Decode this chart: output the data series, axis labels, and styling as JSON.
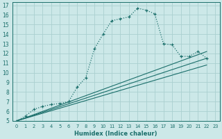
{
  "xlabel": "Humidex (Indice chaleur)",
  "bg_color": "#cce8e8",
  "grid_color": "#aad0d0",
  "line_color": "#1a6e6a",
  "xlim": [
    -0.5,
    23.5
  ],
  "ylim": [
    5,
    17.3
  ],
  "xticks": [
    0,
    1,
    2,
    3,
    4,
    5,
    6,
    7,
    8,
    9,
    10,
    11,
    12,
    13,
    14,
    15,
    16,
    17,
    18,
    19,
    20,
    21,
    22,
    23
  ],
  "yticks": [
    5,
    6,
    7,
    8,
    9,
    10,
    11,
    12,
    13,
    14,
    15,
    16,
    17
  ],
  "series": [
    {
      "x": [
        0,
        1,
        2,
        3,
        4,
        5,
        6,
        7,
        8,
        9,
        10,
        11,
        12,
        13,
        14,
        15,
        16,
        17,
        18,
        19,
        20,
        21,
        22
      ],
      "y": [
        5.0,
        5.5,
        6.2,
        6.5,
        6.7,
        6.8,
        7.0,
        8.5,
        9.5,
        12.5,
        14.0,
        15.4,
        15.6,
        15.8,
        16.7,
        16.5,
        16.1,
        13.0,
        12.9,
        11.7,
        11.7,
        12.2,
        11.5
      ],
      "linestyle": "dotted",
      "marker": "+"
    },
    {
      "x": [
        0,
        22
      ],
      "y": [
        5.0,
        11.5
      ],
      "linestyle": "solid"
    },
    {
      "x": [
        0,
        22
      ],
      "y": [
        5.0,
        12.2
      ],
      "linestyle": "solid"
    },
    {
      "x": [
        0,
        22
      ],
      "y": [
        5.0,
        10.8
      ],
      "linestyle": "solid"
    }
  ]
}
